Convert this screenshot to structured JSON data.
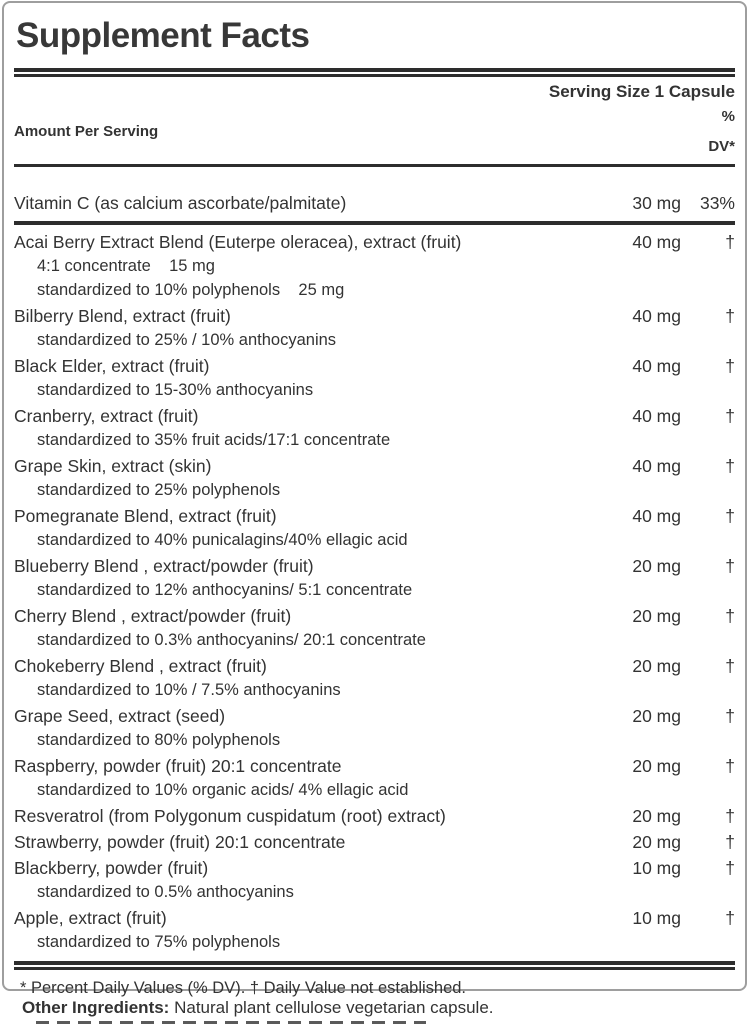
{
  "title": "Supplement Facts",
  "serving_size": "Serving Size 1 Capsule",
  "header": {
    "amount_label": "Amount Per Serving",
    "dv_line1": "%",
    "dv_line2": "DV*"
  },
  "vitamin_row": {
    "name": "Vitamin C (as calcium ascorbate/palmitate)",
    "amount": "30 mg",
    "dv": "33%"
  },
  "ingredients": [
    {
      "name": "Acai Berry Extract Blend (Euterpe oleracea), extract (fruit)",
      "amount": "40 mg",
      "dv": "†",
      "sub": [
        "4:1 concentrate    15 mg",
        "standardized to 10% polyphenols    25 mg"
      ]
    },
    {
      "name": "Bilberry Blend, extract (fruit)",
      "amount": "40 mg",
      "dv": "†",
      "sub": [
        "standardized to 25% / 10% anthocyanins"
      ]
    },
    {
      "name": "Black Elder, extract (fruit)",
      "amount": "40 mg",
      "dv": "†",
      "sub": [
        "standardized to 15-30% anthocyanins"
      ]
    },
    {
      "name": "Cranberry, extract (fruit)",
      "amount": "40 mg",
      "dv": "†",
      "sub": [
        "standardized to 35% fruit acids/17:1 concentrate"
      ]
    },
    {
      "name": "Grape Skin, extract (skin)",
      "amount": "40 mg",
      "dv": "†",
      "sub": [
        "standardized to 25% polyphenols"
      ]
    },
    {
      "name": "Pomegranate Blend, extract (fruit)",
      "amount": "40 mg",
      "dv": "†",
      "sub": [
        "standardized to 40% punicalagins/40% ellagic acid"
      ]
    },
    {
      "name": "Blueberry Blend , extract/powder (fruit)",
      "amount": "20 mg",
      "dv": "†",
      "sub": [
        "standardized to 12% anthocyanins/ 5:1 concentrate"
      ]
    },
    {
      "name": "Cherry Blend , extract/powder (fruit)",
      "amount": "20 mg",
      "dv": "†",
      "sub": [
        "standardized to 0.3% anthocyanins/ 20:1 concentrate"
      ]
    },
    {
      "name": "Chokeberry Blend , extract (fruit)",
      "amount": "20 mg",
      "dv": "†",
      "sub": [
        "standardized to 10% / 7.5% anthocyanins"
      ]
    },
    {
      "name": "Grape Seed, extract (seed)",
      "amount": "20 mg",
      "dv": "†",
      "sub": [
        "standardized to 80% polyphenols"
      ]
    },
    {
      "name": "Raspberry, powder (fruit) 20:1 concentrate",
      "amount": "20 mg",
      "dv": "†",
      "sub": [
        "standardized to 10% organic acids/ 4% ellagic acid"
      ]
    },
    {
      "name": "Resveratrol (from Polygonum cuspidatum (root) extract)",
      "amount": "20 mg",
      "dv": "†",
      "sub": []
    },
    {
      "name": "Strawberry, powder (fruit) 20:1 concentrate",
      "amount": "20 mg",
      "dv": "†",
      "sub": []
    },
    {
      "name": "Blackberry, powder (fruit)",
      "amount": "10 mg",
      "dv": "†",
      "sub": [
        "standardized to 0.5% anthocyanins"
      ]
    },
    {
      "name": "Apple, extract (fruit)",
      "amount": "10 mg",
      "dv": "†",
      "sub": [
        "standardized to 75% polyphenols"
      ]
    }
  ],
  "footnote": "* Percent Daily Values (% DV). † Daily Value not established.",
  "other_ingredients": {
    "label": "Other Ingredients:",
    "text": " Natural plant cellulose vegetarian capsule."
  },
  "colors": {
    "text": "#333333",
    "rule": "#2d2d2d",
    "border": "#9e9e9e",
    "background": "#ffffff"
  }
}
